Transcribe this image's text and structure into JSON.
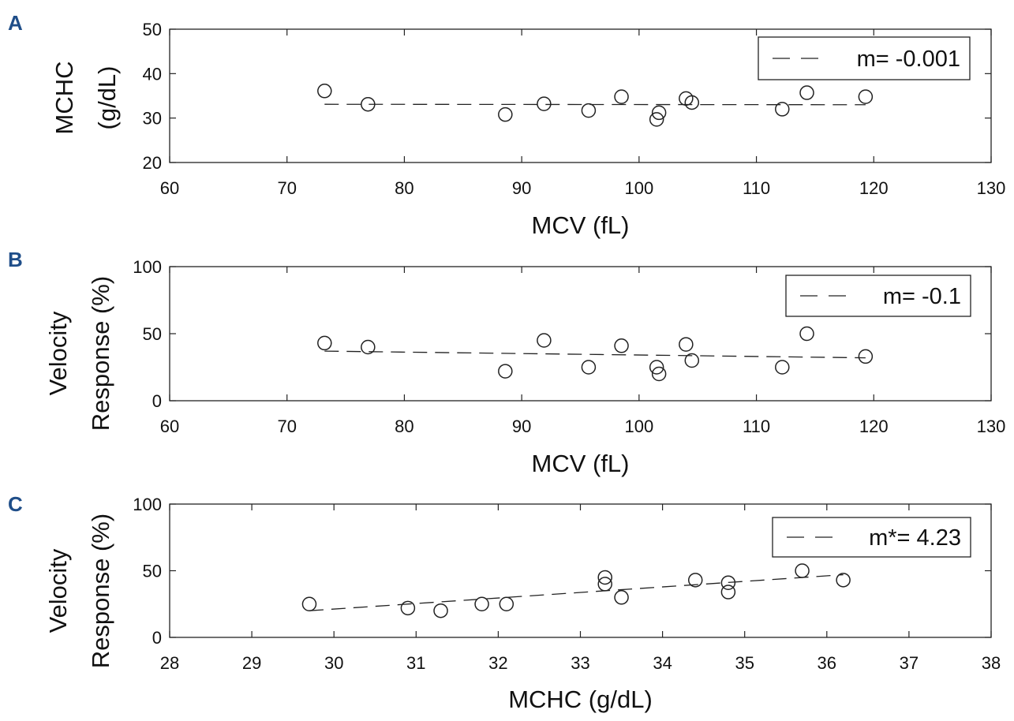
{
  "chart_data": [
    {
      "id": "A",
      "type": "scatter",
      "panel_label": "A",
      "xlabel": "MCV (fL)",
      "ylabel_lines": [
        "MCHC",
        "(g/dL)"
      ],
      "xlim": [
        60,
        130
      ],
      "ylim": [
        20,
        50
      ],
      "xticks": [
        60,
        70,
        80,
        90,
        100,
        110,
        120,
        130
      ],
      "yticks": [
        20,
        30,
        40,
        50
      ],
      "grid": false,
      "legend": {
        "label": "m= -0.001",
        "placement": "top-right",
        "style": "dashed"
      },
      "points": [
        {
          "x": 73.2,
          "y": 36.1
        },
        {
          "x": 76.9,
          "y": 33.1
        },
        {
          "x": 88.6,
          "y": 30.8
        },
        {
          "x": 91.9,
          "y": 33.2
        },
        {
          "x": 95.7,
          "y": 31.7
        },
        {
          "x": 98.5,
          "y": 34.8
        },
        {
          "x": 101.5,
          "y": 29.7
        },
        {
          "x": 101.7,
          "y": 31.2
        },
        {
          "x": 104.0,
          "y": 34.4
        },
        {
          "x": 104.5,
          "y": 33.5
        },
        {
          "x": 112.2,
          "y": 32.0
        },
        {
          "x": 114.3,
          "y": 35.7
        },
        {
          "x": 119.3,
          "y": 34.8
        }
      ],
      "fit_line": [
        {
          "x": 73.2,
          "y": 33.1
        },
        {
          "x": 119.3,
          "y": 33.0
        }
      ]
    },
    {
      "id": "B",
      "type": "scatter",
      "panel_label": "B",
      "xlabel": "MCV (fL)",
      "ylabel_lines": [
        "Velocity",
        "Response (%)"
      ],
      "xlim": [
        60,
        130
      ],
      "ylim": [
        0,
        100
      ],
      "xticks": [
        60,
        70,
        80,
        90,
        100,
        110,
        120,
        130
      ],
      "yticks": [
        0,
        50,
        100
      ],
      "grid": false,
      "legend": {
        "label": "m= -0.1",
        "placement": "top-right",
        "style": "dashed"
      },
      "points": [
        {
          "x": 73.2,
          "y": 43
        },
        {
          "x": 76.9,
          "y": 40
        },
        {
          "x": 88.6,
          "y": 22
        },
        {
          "x": 91.9,
          "y": 45
        },
        {
          "x": 95.7,
          "y": 25
        },
        {
          "x": 98.5,
          "y": 41
        },
        {
          "x": 101.5,
          "y": 25
        },
        {
          "x": 101.7,
          "y": 20
        },
        {
          "x": 104.0,
          "y": 42
        },
        {
          "x": 104.5,
          "y": 30
        },
        {
          "x": 112.2,
          "y": 25
        },
        {
          "x": 114.3,
          "y": 50
        },
        {
          "x": 119.3,
          "y": 33
        }
      ],
      "fit_line": [
        {
          "x": 73.2,
          "y": 37
        },
        {
          "x": 119.3,
          "y": 32
        }
      ]
    },
    {
      "id": "C",
      "type": "scatter",
      "panel_label": "C",
      "xlabel": "MCHC (g/dL)",
      "ylabel_lines": [
        "Velocity",
        "Response (%)"
      ],
      "xlim": [
        28,
        38
      ],
      "ylim": [
        0,
        100
      ],
      "xticks": [
        28,
        29,
        30,
        31,
        32,
        33,
        34,
        35,
        36,
        37,
        38
      ],
      "yticks": [
        0,
        50,
        100
      ],
      "grid": false,
      "legend": {
        "label": "m*= 4.23",
        "placement": "top-right",
        "style": "dashed"
      },
      "points": [
        {
          "x": 29.7,
          "y": 25
        },
        {
          "x": 30.9,
          "y": 22
        },
        {
          "x": 31.3,
          "y": 20
        },
        {
          "x": 31.8,
          "y": 25
        },
        {
          "x": 32.1,
          "y": 25
        },
        {
          "x": 33.3,
          "y": 45
        },
        {
          "x": 33.3,
          "y": 40
        },
        {
          "x": 33.5,
          "y": 30
        },
        {
          "x": 34.4,
          "y": 43
        },
        {
          "x": 34.8,
          "y": 41
        },
        {
          "x": 34.8,
          "y": 34
        },
        {
          "x": 35.7,
          "y": 50
        },
        {
          "x": 36.2,
          "y": 43
        }
      ],
      "fit_line": [
        {
          "x": 29.7,
          "y": 20
        },
        {
          "x": 36.2,
          "y": 47
        }
      ]
    }
  ]
}
